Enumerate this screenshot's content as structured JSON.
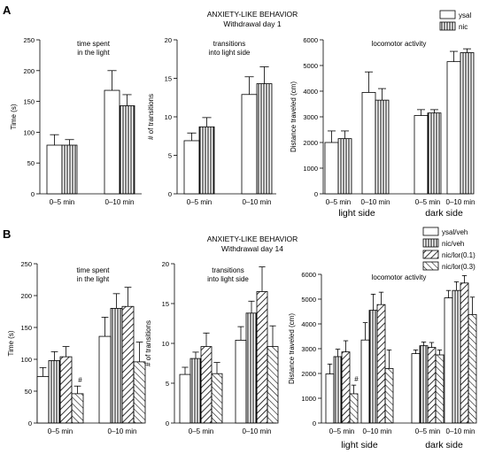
{
  "panels": {
    "A": {
      "letter": "A",
      "title": "ANXIETY-LIKE BEHAVIOR",
      "subtitle": "Withdrawal day 1",
      "legend": [
        "ysal",
        "nic"
      ]
    },
    "B": {
      "letter": "B",
      "title": "ANXIETY-LIKE BEHAVIOR",
      "subtitle": "Withdrawal day 14",
      "legend": [
        "ysal/veh",
        "nic/veh",
        "nic/lor(0.1)",
        "nic/lor(0.3)"
      ]
    }
  },
  "colors": {
    "bar_fill": "#ffffff",
    "stroke": "#000000",
    "background": "#ffffff"
  },
  "chart_data": [
    {
      "id": "A-time",
      "type": "bar",
      "panel": "A",
      "title": "time spent\nin the light",
      "ylabel": "Time (s)",
      "ylim": [
        0,
        250
      ],
      "yticks": [
        0,
        50,
        100,
        150,
        200,
        250
      ],
      "categories": [
        "0–5 min",
        "0–10 min"
      ],
      "series": [
        {
          "name": "ysal",
          "pattern": "open",
          "values": [
            79,
            168
          ],
          "errors": [
            17,
            32
          ]
        },
        {
          "name": "nic",
          "pattern": "vertical",
          "values": [
            79,
            143
          ],
          "errors": [
            9,
            18
          ]
        }
      ]
    },
    {
      "id": "A-trans",
      "type": "bar",
      "panel": "A",
      "title": "transitions\ninto light side",
      "ylabel": "# of transitions",
      "ylim": [
        0,
        20
      ],
      "yticks": [
        0,
        5,
        10,
        15,
        20
      ],
      "categories": [
        "0–5 min",
        "0–10 min"
      ],
      "series": [
        {
          "name": "ysal",
          "pattern": "open",
          "values": [
            6.9,
            12.9
          ],
          "errors": [
            1.0,
            2.3
          ]
        },
        {
          "name": "nic",
          "pattern": "vertical",
          "values": [
            8.7,
            14.3
          ],
          "errors": [
            1.2,
            2.2
          ]
        }
      ]
    },
    {
      "id": "A-loco",
      "type": "bar",
      "panel": "A",
      "title": "locomotor activity",
      "ylabel": "Distance traveled (cm)",
      "ylim": [
        0,
        6000
      ],
      "yticks": [
        0,
        1000,
        2000,
        3000,
        4000,
        5000,
        6000
      ],
      "categories": [
        "0–5 min",
        "0–10 min",
        "0–5 min",
        "0–10 min"
      ],
      "groups": [
        "light side",
        "dark side"
      ],
      "series": [
        {
          "name": "ysal",
          "pattern": "open",
          "values": [
            2000,
            3950,
            3050,
            5150
          ],
          "errors": [
            450,
            800,
            230,
            400
          ]
        },
        {
          "name": "nic",
          "pattern": "vertical",
          "values": [
            2150,
            3650,
            3150,
            5500
          ],
          "errors": [
            300,
            450,
            130,
            150
          ]
        }
      ]
    },
    {
      "id": "B-time",
      "type": "bar",
      "panel": "B",
      "title": "time spent\nin the light",
      "ylabel": "Time (s)",
      "ylim": [
        0,
        250
      ],
      "yticks": [
        0,
        50,
        100,
        150,
        200,
        250
      ],
      "categories": [
        "0–5 min",
        "0–10 min"
      ],
      "annotations": [
        {
          "text": "#",
          "series": 3,
          "category": 0
        }
      ],
      "series": [
        {
          "name": "ysal/veh",
          "pattern": "open",
          "values": [
            73,
            136
          ],
          "errors": [
            14,
            30
          ]
        },
        {
          "name": "nic/veh",
          "pattern": "vertical",
          "values": [
            98,
            180
          ],
          "errors": [
            14,
            23
          ]
        },
        {
          "name": "nic/lor(0.1)",
          "pattern": "backslash",
          "values": [
            104,
            183
          ],
          "errors": [
            16,
            30
          ]
        },
        {
          "name": "nic/lor(0.3)",
          "pattern": "forward",
          "values": [
            46,
            96
          ],
          "errors": [
            12,
            31
          ]
        }
      ]
    },
    {
      "id": "B-trans",
      "type": "bar",
      "panel": "B",
      "title": "transitions\ninto light side",
      "ylabel": "# of transitions",
      "ylim": [
        0,
        20
      ],
      "yticks": [
        0,
        5,
        10,
        15,
        20
      ],
      "categories": [
        "0–5 min",
        "0–10 min"
      ],
      "series": [
        {
          "name": "ysal/veh",
          "pattern": "open",
          "values": [
            6.1,
            10.4
          ],
          "errors": [
            0.9,
            1.7
          ]
        },
        {
          "name": "nic/veh",
          "pattern": "vertical",
          "values": [
            8.1,
            13.8
          ],
          "errors": [
            0.8,
            1.5
          ]
        },
        {
          "name": "nic/lor(0.1)",
          "pattern": "backslash",
          "values": [
            9.6,
            16.5
          ],
          "errors": [
            1.7,
            3.1
          ]
        },
        {
          "name": "nic/lor(0.3)",
          "pattern": "forward",
          "values": [
            6.2,
            9.6
          ],
          "errors": [
            1.4,
            2.6
          ]
        }
      ]
    },
    {
      "id": "B-loco",
      "type": "bar",
      "panel": "B",
      "title": "locomotor activity",
      "ylabel": "Distance traveled (cm)",
      "ylim": [
        0,
        6000
      ],
      "yticks": [
        0,
        1000,
        2000,
        3000,
        4000,
        5000,
        6000
      ],
      "categories": [
        "0–5 min",
        "0–10 min",
        "0–5 min",
        "0–10 min"
      ],
      "groups": [
        "light side",
        "dark side"
      ],
      "annotations": [
        {
          "text": "#",
          "series": 3,
          "category": 0
        }
      ],
      "series": [
        {
          "name": "ysal/veh",
          "pattern": "open",
          "values": [
            1980,
            3350,
            2800,
            5050
          ],
          "errors": [
            400,
            700,
            150,
            300
          ]
        },
        {
          "name": "nic/veh",
          "pattern": "vertical",
          "values": [
            2680,
            4550,
            3120,
            5350
          ],
          "errors": [
            300,
            650,
            150,
            350
          ]
        },
        {
          "name": "nic/lor(0.1)",
          "pattern": "backslash",
          "values": [
            2870,
            4780,
            3050,
            5650
          ],
          "errors": [
            450,
            500,
            200,
            300
          ]
        },
        {
          "name": "nic/lor(0.3)",
          "pattern": "forward",
          "values": [
            1180,
            2200,
            2750,
            4380
          ],
          "errors": [
            350,
            750,
            200,
            700
          ]
        }
      ]
    }
  ]
}
